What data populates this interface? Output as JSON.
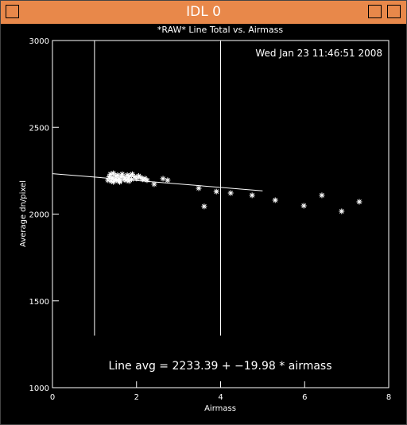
{
  "window": {
    "title": "IDL 0"
  },
  "chart_data": {
    "type": "scatter",
    "title": "*RAW* Line Total vs. Airmass",
    "x_label": "Airmass",
    "y_label": "Average dn/pixel",
    "annotations": [
      "Wed Jan 23 11:46:51 2008",
      "Line avg = 2233.39 + −19.98 * airmass"
    ],
    "xlim": [
      0,
      8
    ],
    "xticks": [
      0,
      2,
      4,
      6,
      8
    ],
    "ylim": [
      1000,
      3000
    ],
    "yticks": [
      1000,
      1500,
      2000,
      2500,
      3000
    ],
    "color": "#ffffff",
    "x": [
      1.32,
      1.35,
      1.38,
      1.4,
      1.42,
      1.45,
      1.48,
      1.5,
      1.52,
      1.55,
      1.58,
      1.6,
      1.63,
      1.66,
      1.7,
      1.72,
      1.75,
      1.78,
      1.8,
      1.84,
      1.88,
      1.9,
      1.95,
      2.0,
      2.05,
      2.1,
      2.15,
      2.2,
      2.25,
      1.45,
      1.6,
      1.82,
      2.42,
      2.63,
      2.74,
      3.48,
      3.61,
      3.9,
      4.24,
      4.75,
      5.3,
      5.98,
      6.41,
      6.88,
      7.3
    ],
    "y": [
      2195,
      2215,
      2230,
      2190,
      2210,
      2235,
      2200,
      2220,
      2195,
      2225,
      2205,
      2190,
      2215,
      2230,
      2200,
      2210,
      2195,
      2225,
      2205,
      2220,
      2200,
      2230,
      2215,
      2205,
      2220,
      2210,
      2200,
      2205,
      2195,
      2185,
      2185,
      2190,
      2172,
      2204,
      2195,
      2149,
      2044,
      2130,
      2121,
      2108,
      2080,
      2048,
      2108,
      2016,
      2071
    ],
    "fit_line": {
      "x": [
        0,
        5
      ],
      "y": [
        2233,
        2134
      ]
    },
    "vlines": [
      {
        "x": 1,
        "y": [
          1300,
          3000
        ]
      },
      {
        "x": 4,
        "y": [
          1300,
          3000
        ]
      }
    ]
  }
}
